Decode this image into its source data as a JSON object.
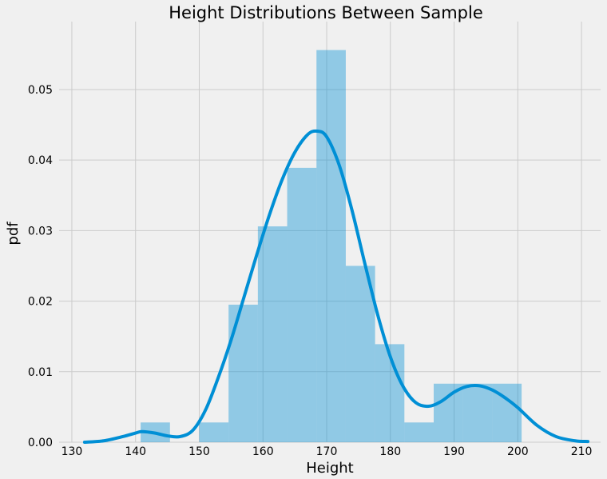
{
  "chart_data": {
    "type": "bar",
    "title": "Height Distributions Between Sample",
    "xlabel": "Height",
    "ylabel": "pdf",
    "xlim": [
      128,
      213
    ],
    "ylim": [
      0,
      0.0585
    ],
    "grid": true,
    "x_ticks": [
      "130",
      "140",
      "150",
      "160",
      "170",
      "180",
      "190",
      "200",
      "210"
    ],
    "y_ticks": [
      "0.00",
      "0.01",
      "0.02",
      "0.03",
      "0.04",
      "0.05"
    ],
    "x_tick_values": [
      130,
      140,
      150,
      160,
      170,
      180,
      190,
      200,
      210
    ],
    "y_tick_values": [
      0,
      0.01,
      0.02,
      0.03,
      0.04,
      0.05
    ],
    "histogram": {
      "bin_edges": [
        140.8,
        145.4,
        150.0,
        154.6,
        159.2,
        163.8,
        168.4,
        173.0,
        177.6,
        182.2,
        186.8,
        191.4,
        196.0,
        200.6
      ],
      "values": [
        0.0028,
        0.0,
        0.0028,
        0.0195,
        0.0306,
        0.0389,
        0.0556,
        0.025,
        0.0139,
        0.0028,
        0.0083,
        0.0083,
        0.0083
      ],
      "color": "#008fd5"
    },
    "kde": {
      "x": [
        132,
        135,
        138,
        140,
        141,
        143,
        145,
        147,
        149,
        151,
        153,
        155,
        157,
        159,
        161,
        163,
        165,
        167,
        168.5,
        170,
        172,
        174,
        176,
        178,
        180,
        182,
        184,
        186,
        188,
        190,
        192,
        194,
        196,
        198,
        200,
        203,
        206,
        209,
        211
      ],
      "y": [
        0.0,
        0.0002,
        0.0008,
        0.0013,
        0.0015,
        0.0013,
        0.0009,
        0.0008,
        0.0017,
        0.0046,
        0.0092,
        0.0145,
        0.0205,
        0.0265,
        0.0322,
        0.0372,
        0.0411,
        0.0436,
        0.0441,
        0.0433,
        0.0392,
        0.0328,
        0.0253,
        0.0181,
        0.0121,
        0.0079,
        0.0056,
        0.0051,
        0.0058,
        0.0071,
        0.0079,
        0.008,
        0.0074,
        0.0063,
        0.0049,
        0.0024,
        0.0008,
        0.0002,
        0.0001
      ],
      "color": "#008fd5"
    }
  }
}
